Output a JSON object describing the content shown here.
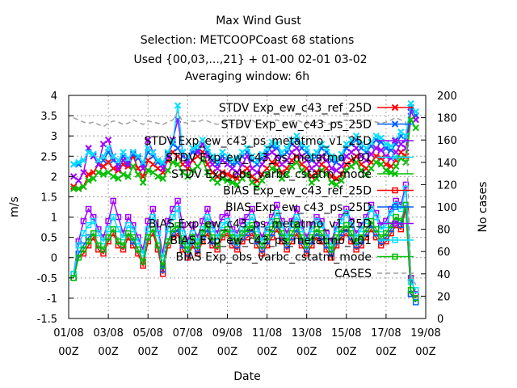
{
  "chart_data": {
    "type": "line",
    "title_lines": [
      "Max Wind Gust",
      "Selection: METCOOPCoast     68 stations",
      "Used {00,03,...,21} + 01-00 02-01 03-02",
      "Averaging window:  6h"
    ],
    "xlabel": "Date",
    "ylabel": "m/s",
    "y2label": "No cases",
    "ylim": [
      -1.5,
      4
    ],
    "y2lim": [
      0,
      200
    ],
    "xlim": [
      0,
      18
    ],
    "yticks": [
      -1.5,
      -1,
      -0.5,
      0,
      0.5,
      1,
      1.5,
      2,
      2.5,
      3,
      3.5,
      4
    ],
    "y2ticks": [
      0,
      20,
      40,
      60,
      80,
      100,
      120,
      140,
      160,
      180,
      200
    ],
    "xticks": [
      {
        "x": 0,
        "l1": "01/08",
        "l2": "00Z"
      },
      {
        "x": 2,
        "l1": "03/08",
        "l2": "00Z"
      },
      {
        "x": 4,
        "l1": "05/08",
        "l2": "00Z"
      },
      {
        "x": 6,
        "l1": "07/08",
        "l2": "00Z"
      },
      {
        "x": 8,
        "l1": "09/08",
        "l2": "00Z"
      },
      {
        "x": 10,
        "l1": "11/08",
        "l2": "00Z"
      },
      {
        "x": 12,
        "l1": "13/08",
        "l2": "00Z"
      },
      {
        "x": 14,
        "l1": "15/08",
        "l2": "00Z"
      },
      {
        "x": 16,
        "l1": "17/08",
        "l2": "00Z"
      },
      {
        "x": 18,
        "l1": "19/08",
        "l2": "00Z"
      }
    ],
    "grid": true,
    "legend_position": "top-right",
    "x_start": 0.25,
    "x_step": 0.25,
    "series": [
      {
        "name": "STDV Exp_ew_c43_ref_25D",
        "color": "#ff0000",
        "marker": "x",
        "dash": "",
        "axis": "y",
        "values": [
          1.75,
          1.7,
          1.75,
          2.05,
          2.1,
          2.3,
          2.25,
          2.35,
          2.2,
          2.15,
          2.3,
          2.25,
          2.5,
          2.2,
          2.0,
          2.4,
          2.3,
          2.2,
          2.1,
          2.4,
          2.6,
          2.5,
          2.3,
          2.2,
          2.4,
          2.5,
          2.6,
          2.3,
          2.1,
          2.0,
          2.1,
          2.05,
          2.0,
          1.95,
          2.1,
          2.2,
          2.0,
          1.9,
          2.05,
          2.2,
          2.35,
          2.3,
          2.1,
          2.2,
          2.4,
          2.5,
          2.3,
          2.2,
          2.0,
          2.1,
          2.3,
          2.2,
          2.0,
          1.95,
          2.05,
          2.3,
          2.4,
          2.5,
          2.3,
          2.2,
          2.35,
          2.5,
          2.45,
          2.3,
          2.25,
          2.4,
          2.6,
          2.5,
          3.7,
          3.5
        ]
      },
      {
        "name": "STDV Exp_ew_c43_ps_25D",
        "color": "#0060ff",
        "marker": "x",
        "dash": "",
        "axis": "y",
        "values": [
          2.3,
          2.3,
          2.4,
          2.6,
          2.5,
          2.3,
          2.4,
          2.6,
          2.4,
          2.3,
          2.5,
          2.35,
          2.55,
          2.45,
          2.3,
          2.6,
          2.5,
          2.35,
          2.3,
          2.55,
          2.8,
          2.7,
          2.5,
          2.4,
          2.6,
          2.65,
          2.8,
          2.6,
          2.4,
          2.3,
          2.5,
          2.4,
          2.3,
          2.35,
          2.5,
          2.6,
          2.4,
          2.3,
          2.45,
          2.6,
          2.75,
          2.7,
          2.5,
          2.6,
          2.8,
          2.9,
          2.7,
          2.6,
          2.4,
          2.5,
          2.7,
          2.6,
          2.4,
          2.35,
          2.45,
          2.7,
          2.8,
          2.9,
          2.7,
          2.6,
          2.75,
          2.9,
          2.85,
          2.7,
          2.65,
          2.8,
          3.0,
          2.9,
          3.7,
          3.5
        ]
      },
      {
        "name": "STDV Exp_ew_c43_ps_metatmo_v1_25D",
        "color": "#a000ff",
        "marker": "x",
        "dash": "",
        "axis": "y",
        "values": [
          2.0,
          1.9,
          2.1,
          2.7,
          2.5,
          2.3,
          2.8,
          2.9,
          2.5,
          2.2,
          2.4,
          2.3,
          2.6,
          2.5,
          2.2,
          2.9,
          2.6,
          2.4,
          2.2,
          2.5,
          2.9,
          3.4,
          2.6,
          2.3,
          2.7,
          2.6,
          2.8,
          2.5,
          2.3,
          2.2,
          2.4,
          2.3,
          2.2,
          2.1,
          2.3,
          2.5,
          2.2,
          2.1,
          2.3,
          2.5,
          2.6,
          2.5,
          2.3,
          2.4,
          2.6,
          2.7,
          2.5,
          2.4,
          2.2,
          2.3,
          2.5,
          2.4,
          2.2,
          2.15,
          2.25,
          2.5,
          2.6,
          2.7,
          2.5,
          2.4,
          2.55,
          2.7,
          2.65,
          2.5,
          2.45,
          2.6,
          2.8,
          2.7,
          3.6,
          3.4
        ]
      },
      {
        "name": "STDV Exp_ew_c43_ps_metatmo_v01",
        "color": "#00e0ff",
        "marker": "x",
        "dash": "",
        "axis": "y",
        "values": [
          2.3,
          2.35,
          2.4,
          2.6,
          2.55,
          2.4,
          2.5,
          2.7,
          2.5,
          2.4,
          2.6,
          2.45,
          2.6,
          2.5,
          2.35,
          2.7,
          2.6,
          2.4,
          2.35,
          2.6,
          2.85,
          3.75,
          2.6,
          2.5,
          2.7,
          2.75,
          2.9,
          2.7,
          2.5,
          2.4,
          2.6,
          2.5,
          2.4,
          2.45,
          2.6,
          2.7,
          2.5,
          2.4,
          2.55,
          2.7,
          2.85,
          2.8,
          2.6,
          2.7,
          2.9,
          3.0,
          2.8,
          2.7,
          2.5,
          2.6,
          2.8,
          2.7,
          2.5,
          2.45,
          2.55,
          2.8,
          2.9,
          3.0,
          2.8,
          2.7,
          2.85,
          3.0,
          2.95,
          2.8,
          2.75,
          2.9,
          3.1,
          3.0,
          3.8,
          3.6
        ]
      },
      {
        "name": "STDV Exp_obs_varbc_cstatm_mode",
        "color": "#00c000",
        "marker": "x",
        "dash": "",
        "axis": "y",
        "values": [
          1.7,
          1.7,
          1.75,
          1.9,
          1.95,
          2.1,
          2.05,
          2.1,
          2.0,
          1.95,
          2.05,
          2.0,
          2.25,
          2.05,
          1.85,
          2.15,
          2.1,
          2.0,
          1.95,
          2.15,
          2.35,
          2.3,
          2.1,
          2.0,
          2.15,
          2.25,
          2.4,
          2.1,
          1.95,
          1.85,
          1.95,
          1.9,
          1.85,
          1.8,
          1.95,
          2.05,
          1.85,
          1.75,
          1.9,
          2.05,
          2.2,
          2.15,
          1.95,
          2.05,
          2.25,
          2.35,
          2.15,
          2.05,
          1.85,
          1.95,
          2.15,
          2.05,
          1.85,
          1.8,
          1.9,
          2.15,
          2.25,
          2.35,
          2.15,
          2.05,
          2.2,
          2.35,
          2.3,
          2.15,
          2.1,
          2.25,
          2.45,
          2.35,
          3.4,
          3.2
        ]
      },
      {
        "name": "BIAS Exp_ew_c43_ref_25D",
        "color": "#ff0000",
        "marker": "sq",
        "dash": "",
        "axis": "y",
        "values": [
          -0.5,
          0.0,
          0.1,
          0.3,
          0.5,
          0.2,
          0.1,
          0.4,
          0.6,
          0.3,
          0.2,
          0.5,
          0.3,
          0.1,
          -0.2,
          0.4,
          0.6,
          0.2,
          -0.4,
          0.3,
          0.5,
          0.6,
          0.2,
          0.0,
          0.3,
          0.1,
          0.4,
          0.6,
          0.3,
          0.2,
          0.5,
          0.6,
          0.3,
          0.2,
          0.4,
          0.5,
          0.6,
          0.3,
          0.1,
          0.3,
          0.5,
          0.7,
          0.4,
          0.2,
          0.4,
          0.6,
          0.3,
          0.1,
          0.3,
          0.5,
          0.4,
          0.2,
          0.0,
          0.3,
          0.5,
          0.6,
          0.4,
          0.2,
          0.3,
          0.5,
          0.7,
          0.5,
          0.3,
          0.4,
          0.6,
          0.8,
          0.7,
          1.2,
          -0.9,
          -1.0
        ]
      },
      {
        "name": "BIAS Exp_ew_c43_ps_25D",
        "color": "#0060ff",
        "marker": "sq",
        "dash": "",
        "axis": "y",
        "values": [
          -0.5,
          0.1,
          0.3,
          0.5,
          0.6,
          0.3,
          0.2,
          0.5,
          0.7,
          0.4,
          0.3,
          0.6,
          0.4,
          0.2,
          -0.1,
          0.5,
          0.7,
          0.3,
          -0.3,
          0.4,
          0.6,
          0.7,
          0.3,
          0.1,
          0.4,
          0.2,
          0.5,
          0.7,
          0.4,
          0.3,
          0.6,
          0.7,
          0.4,
          0.3,
          0.5,
          0.6,
          0.7,
          0.4,
          0.2,
          0.4,
          0.6,
          0.8,
          0.5,
          0.3,
          0.5,
          0.7,
          0.4,
          0.2,
          0.4,
          0.6,
          0.5,
          0.3,
          0.1,
          0.4,
          0.6,
          0.7,
          0.5,
          0.3,
          0.4,
          0.6,
          0.8,
          0.6,
          0.4,
          0.5,
          0.7,
          0.9,
          0.8,
          1.3,
          -0.9,
          -1.1
        ]
      },
      {
        "name": "BIAS Exp_ew_c43_ps_metatmo_v1_25D",
        "color": "#a000ff",
        "marker": "sq",
        "dash": "",
        "axis": "y",
        "values": [
          -0.4,
          0.4,
          0.9,
          1.2,
          1.0,
          0.7,
          0.5,
          0.9,
          1.4,
          1.0,
          0.6,
          1.0,
          0.8,
          0.5,
          0.2,
          0.9,
          1.2,
          0.7,
          0.1,
          0.9,
          1.2,
          1.4,
          0.8,
          0.4,
          0.8,
          0.5,
          0.9,
          1.2,
          0.8,
          0.6,
          1.0,
          1.1,
          0.7,
          0.6,
          0.9,
          1.0,
          1.2,
          0.8,
          0.5,
          0.8,
          1.0,
          1.3,
          0.9,
          0.6,
          0.9,
          1.2,
          0.8,
          0.5,
          0.8,
          1.0,
          0.9,
          0.6,
          0.4,
          0.8,
          1.0,
          1.2,
          0.9,
          0.6,
          0.8,
          1.0,
          1.3,
          1.1,
          0.8,
          0.9,
          1.2,
          1.4,
          1.3,
          1.8,
          -0.5,
          -0.9
        ]
      },
      {
        "name": "BIAS Exp_ew_c43_ps_metatmo_v01",
        "color": "#00e0ff",
        "marker": "sq",
        "dash": "",
        "axis": "y",
        "values": [
          -0.4,
          0.3,
          0.6,
          0.8,
          0.9,
          0.6,
          0.4,
          0.7,
          1.0,
          0.7,
          0.5,
          0.8,
          0.7,
          0.4,
          0.1,
          0.7,
          1.0,
          0.6,
          0.0,
          0.7,
          1.0,
          1.2,
          0.6,
          0.3,
          0.6,
          0.4,
          0.7,
          1.0,
          0.7,
          0.5,
          0.8,
          0.9,
          0.6,
          0.5,
          0.7,
          0.8,
          1.0,
          0.7,
          0.4,
          0.7,
          0.9,
          1.1,
          0.8,
          0.5,
          0.8,
          1.0,
          0.7,
          0.4,
          0.7,
          0.9,
          0.8,
          0.5,
          0.3,
          0.7,
          0.9,
          1.1,
          0.8,
          0.5,
          0.7,
          0.9,
          1.2,
          1.0,
          0.7,
          0.8,
          1.1,
          1.3,
          1.2,
          1.7,
          -0.6,
          -0.8
        ]
      },
      {
        "name": "BIAS Exp_obs_varbc_cstatm_mode",
        "color": "#00c000",
        "marker": "sq",
        "dash": "",
        "axis": "y",
        "values": [
          -0.5,
          0.0,
          0.2,
          0.4,
          0.6,
          0.3,
          0.2,
          0.5,
          0.7,
          0.4,
          0.3,
          0.6,
          0.5,
          0.2,
          -0.1,
          0.5,
          0.7,
          0.3,
          -0.2,
          0.4,
          0.7,
          0.8,
          0.4,
          0.2,
          0.5,
          0.3,
          0.6,
          0.8,
          0.5,
          0.3,
          0.6,
          0.7,
          0.5,
          0.4,
          0.6,
          0.7,
          0.8,
          0.5,
          0.3,
          0.5,
          0.7,
          0.9,
          0.6,
          0.4,
          0.6,
          0.8,
          0.5,
          0.3,
          0.5,
          0.7,
          0.6,
          0.4,
          0.2,
          0.5,
          0.7,
          0.8,
          0.6,
          0.4,
          0.5,
          0.7,
          0.9,
          0.7,
          0.5,
          0.6,
          0.8,
          1.0,
          0.9,
          1.3,
          -0.8,
          -1.0
        ]
      },
      {
        "name": "CASES",
        "color": "#a0a0a0",
        "marker": "none",
        "dash": "6,4",
        "axis": "y2",
        "values": [
          180,
          178,
          176,
          175,
          176,
          174,
          172,
          175,
          177,
          176,
          174,
          175,
          178,
          176,
          174,
          177,
          176,
          175,
          174,
          176,
          178,
          185,
          176,
          175,
          177,
          176,
          178,
          177,
          175,
          174,
          176,
          177,
          175,
          174,
          176,
          177,
          178,
          175,
          174,
          176,
          177,
          178,
          176,
          175,
          177,
          178,
          176,
          175,
          174,
          176,
          177,
          175,
          174,
          176,
          177,
          178,
          176,
          175,
          176,
          177,
          178,
          176,
          175,
          176,
          178,
          180,
          178,
          176,
          40,
          30
        ]
      }
    ]
  }
}
